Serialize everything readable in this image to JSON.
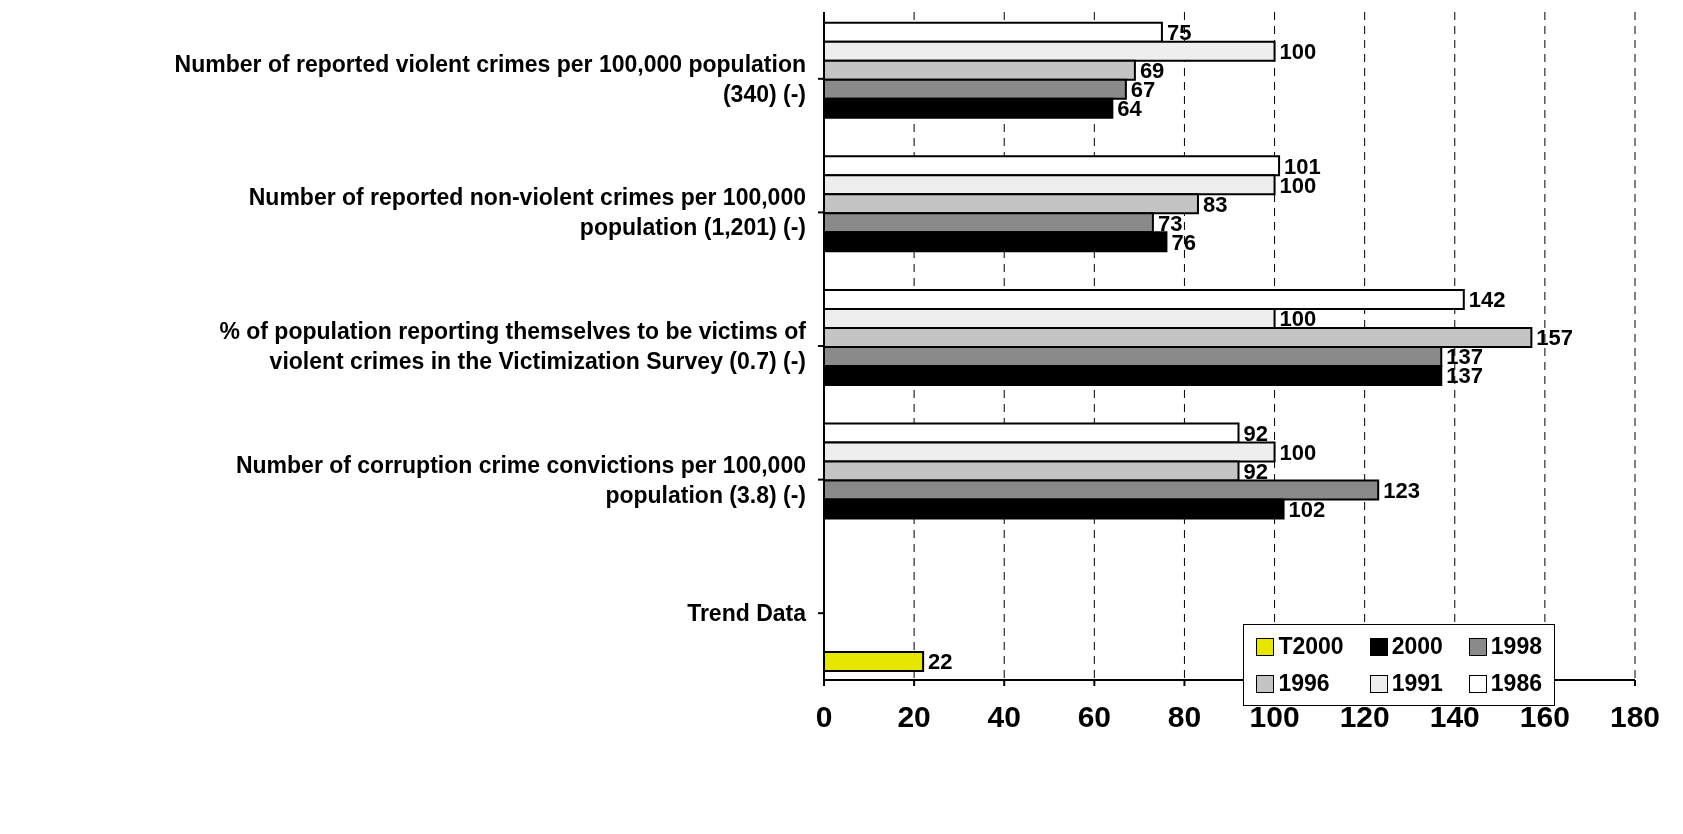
{
  "chart_data": {
    "type": "bar",
    "orientation": "horizontal",
    "categories": [
      "Number of reported violent crimes per 100,000 population (340) (-)",
      "Number of reported non-violent crimes per 100,000 population (1,201) (-)",
      "% of population reporting themselves to be victims of violent crimes in the Victimization Survey (0.7) (-)",
      "Number of corruption crime convictions per 100,000 population (3.8) (-)",
      "Trend Data"
    ],
    "series": [
      {
        "name": "1986",
        "color": "#ffffff",
        "values": [
          75,
          101,
          142,
          92,
          null
        ]
      },
      {
        "name": "1991",
        "color": "#eeeeee",
        "values": [
          100,
          100,
          100,
          100,
          null
        ]
      },
      {
        "name": "1996",
        "color": "#c4c4c4",
        "values": [
          69,
          83,
          157,
          92,
          null
        ]
      },
      {
        "name": "1998",
        "color": "#8a8a8a",
        "values": [
          67,
          73,
          137,
          123,
          null
        ]
      },
      {
        "name": "2000",
        "color": "#000000",
        "values": [
          64,
          76,
          137,
          102,
          null
        ]
      },
      {
        "name": "T2000",
        "color": "#e6e600",
        "values": [
          null,
          null,
          null,
          null,
          22
        ]
      }
    ],
    "xlim": [
      0,
      180
    ],
    "xticks": [
      0,
      20,
      40,
      60,
      80,
      100,
      120,
      140,
      160,
      180
    ],
    "grid": "x",
    "legend": "bottom right",
    "data_labels": true
  }
}
